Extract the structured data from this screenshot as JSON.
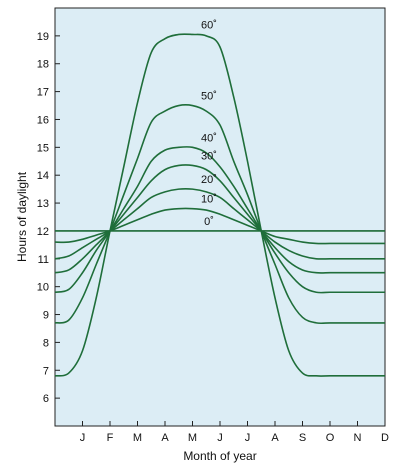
{
  "chart_data": {
    "type": "line",
    "xlabel": "Month of year",
    "ylabel": "Hours of daylight",
    "ylim": [
      5,
      20
    ],
    "xlim": [
      0,
      12
    ],
    "x_tick_labels": [
      "J",
      "F",
      "M",
      "A",
      "M",
      "J",
      "J",
      "A",
      "S",
      "O",
      "N",
      "D"
    ],
    "y_ticks": [
      6,
      7,
      8,
      9,
      10,
      11,
      12,
      13,
      14,
      15,
      16,
      17,
      18,
      19
    ],
    "grid": false,
    "background_color": "#dcedf5",
    "line_color": "#1f6e3a",
    "reference_line": 12,
    "x": [
      0,
      0.5,
      1,
      1.5,
      2,
      2.5,
      3,
      3.5,
      4,
      4.5,
      5,
      5.5,
      6,
      6.5,
      7,
      7.5,
      8,
      8.5,
      9,
      9.5,
      10,
      10.5,
      11,
      11.5,
      12
    ],
    "series": [
      {
        "name": "60˚",
        "values": [
          6.8,
          6.9,
          7.7,
          9.6,
          12.0,
          14.3,
          16.6,
          18.4,
          18.9,
          19.05,
          19.05,
          19.0,
          18.6,
          16.8,
          14.5,
          12.0,
          9.6,
          7.7,
          6.9,
          6.8,
          6.8,
          6.8,
          6.8,
          6.8,
          6.8
        ]
      },
      {
        "name": "50˚",
        "values": [
          8.7,
          8.8,
          9.6,
          10.8,
          12.0,
          13.3,
          14.6,
          15.9,
          16.3,
          16.5,
          16.5,
          16.3,
          15.8,
          14.5,
          13.3,
          12.0,
          10.8,
          9.6,
          8.9,
          8.7,
          8.7,
          8.7,
          8.7,
          8.7,
          8.7
        ]
      },
      {
        "name": "40˚",
        "values": [
          9.8,
          9.9,
          10.5,
          11.3,
          12.0,
          12.8,
          13.6,
          14.5,
          14.9,
          15.0,
          15.0,
          14.8,
          14.3,
          13.6,
          12.8,
          12.0,
          11.2,
          10.5,
          10.0,
          9.8,
          9.8,
          9.8,
          9.8,
          9.8,
          9.8
        ]
      },
      {
        "name": "30˚",
        "values": [
          10.5,
          10.6,
          11.0,
          11.5,
          12.0,
          12.6,
          13.2,
          13.8,
          14.2,
          14.35,
          14.35,
          14.2,
          13.8,
          13.2,
          12.6,
          12.0,
          11.4,
          10.9,
          10.6,
          10.5,
          10.5,
          10.5,
          10.5,
          10.5,
          10.5
        ]
      },
      {
        "name": "20˚",
        "values": [
          11.0,
          11.1,
          11.4,
          11.7,
          12.0,
          12.4,
          12.8,
          13.2,
          13.4,
          13.5,
          13.5,
          13.4,
          13.2,
          12.8,
          12.4,
          12.0,
          11.6,
          11.3,
          11.1,
          11.0,
          11.0,
          11.0,
          11.0,
          11.0,
          11.0
        ]
      },
      {
        "name": "10˚",
        "values": [
          11.6,
          11.6,
          11.7,
          11.85,
          12.0,
          12.2,
          12.4,
          12.6,
          12.75,
          12.8,
          12.8,
          12.75,
          12.6,
          12.4,
          12.2,
          12.0,
          11.8,
          11.7,
          11.6,
          11.55,
          11.55,
          11.55,
          11.55,
          11.55,
          11.55
        ]
      },
      {
        "name": "0˚",
        "values": [
          12,
          12,
          12,
          12,
          12,
          12,
          12,
          12,
          12,
          12,
          12,
          12,
          12,
          12,
          12,
          12,
          12,
          12,
          12,
          12,
          12,
          12,
          12,
          12,
          12
        ]
      }
    ]
  }
}
